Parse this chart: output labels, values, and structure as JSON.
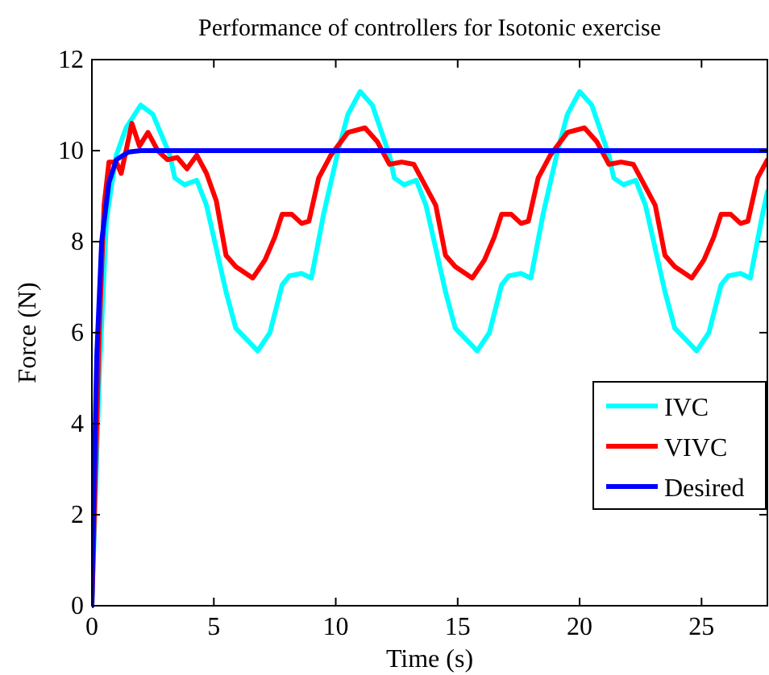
{
  "chart_data": {
    "type": "line",
    "title": "Performance of controllers for Isotonic exercise",
    "xlabel": "Time (s)",
    "ylabel": "Force (N)",
    "xlim": [
      0,
      27.7
    ],
    "ylim": [
      0,
      12
    ],
    "xticks": [
      0,
      5,
      10,
      15,
      20,
      25
    ],
    "yticks": [
      0,
      2,
      4,
      6,
      8,
      10,
      12
    ],
    "grid": false,
    "legend": "right",
    "marker": "none",
    "line_style": "solid",
    "series": [
      {
        "name": "IVC",
        "color": "#00ffff",
        "x": [
          0,
          0.3,
          0.6,
          1.0,
          1.4,
          2.0,
          2.5,
          3.2,
          3.4,
          3.8,
          4.3,
          4.7,
          5.5,
          5.9,
          6.8,
          7.3,
          7.8,
          8.1,
          8.6,
          9.0,
          9.5,
          10.1,
          10.5,
          11.0,
          11.5,
          12.2,
          12.4,
          12.8,
          13.3,
          13.7,
          14.5,
          14.9,
          15.8,
          16.3,
          16.8,
          17.1,
          17.6,
          18.0,
          18.5,
          19.1,
          19.5,
          20.0,
          20.5,
          21.2,
          21.4,
          21.8,
          22.3,
          22.7,
          23.5,
          23.9,
          24.8,
          25.3,
          25.8,
          26.1,
          26.6,
          27.0,
          27.5,
          27.7
        ],
        "values": [
          0,
          5,
          8.5,
          9.9,
          10.5,
          11.0,
          10.8,
          9.9,
          9.4,
          9.25,
          9.35,
          8.8,
          6.9,
          6.1,
          5.6,
          6.0,
          7.05,
          7.25,
          7.3,
          7.2,
          8.6,
          10.0,
          10.8,
          11.3,
          11.0,
          9.9,
          9.4,
          9.25,
          9.35,
          8.8,
          6.9,
          6.1,
          5.6,
          6.0,
          7.05,
          7.25,
          7.3,
          7.2,
          8.6,
          10.0,
          10.8,
          11.3,
          11.0,
          9.9,
          9.4,
          9.25,
          9.35,
          8.8,
          6.9,
          6.1,
          5.6,
          6.0,
          7.05,
          7.25,
          7.3,
          7.2,
          8.6,
          9.1
        ]
      },
      {
        "name": "VIVC",
        "color": "#ff0000",
        "x": [
          0,
          0.1,
          0.3,
          0.5,
          0.7,
          1.0,
          1.2,
          1.64,
          1.95,
          2.3,
          2.7,
          3.1,
          3.5,
          3.9,
          4.3,
          4.7,
          5.1,
          5.5,
          5.9,
          6.6,
          7.1,
          7.5,
          7.8,
          8.2,
          8.6,
          8.9,
          9.3,
          9.8,
          10.5,
          11.2,
          11.7,
          12.2,
          12.7,
          13.2,
          13.7,
          14.1,
          14.5,
          14.9,
          15.6,
          16.1,
          16.5,
          16.8,
          17.2,
          17.6,
          17.9,
          18.3,
          18.8,
          19.5,
          20.2,
          20.7,
          21.2,
          21.7,
          22.2,
          22.7,
          23.1,
          23.5,
          23.9,
          24.6,
          25.1,
          25.5,
          25.8,
          26.2,
          26.6,
          26.9,
          27.3,
          27.7
        ],
        "values": [
          0,
          2,
          6,
          8.8,
          9.75,
          9.75,
          9.5,
          10.6,
          10.1,
          10.4,
          10.0,
          9.8,
          9.85,
          9.6,
          9.9,
          9.5,
          8.9,
          7.7,
          7.45,
          7.2,
          7.6,
          8.1,
          8.6,
          8.6,
          8.4,
          8.45,
          9.4,
          9.9,
          10.4,
          10.5,
          10.2,
          9.7,
          9.75,
          9.7,
          9.2,
          8.8,
          7.7,
          7.45,
          7.2,
          7.6,
          8.1,
          8.6,
          8.6,
          8.4,
          8.45,
          9.4,
          9.9,
          10.4,
          10.5,
          10.2,
          9.7,
          9.75,
          9.7,
          9.2,
          8.8,
          7.7,
          7.45,
          7.2,
          7.6,
          8.1,
          8.6,
          8.6,
          8.4,
          8.45,
          9.4,
          9.8
        ]
      },
      {
        "name": "Desired",
        "color": "#0000ff",
        "x": [
          0,
          0.1,
          0.2,
          0.4,
          0.7,
          1.0,
          1.5,
          2.0,
          27.7
        ],
        "values": [
          0,
          3,
          5.5,
          8,
          9.3,
          9.8,
          9.97,
          10,
          10
        ]
      }
    ]
  }
}
